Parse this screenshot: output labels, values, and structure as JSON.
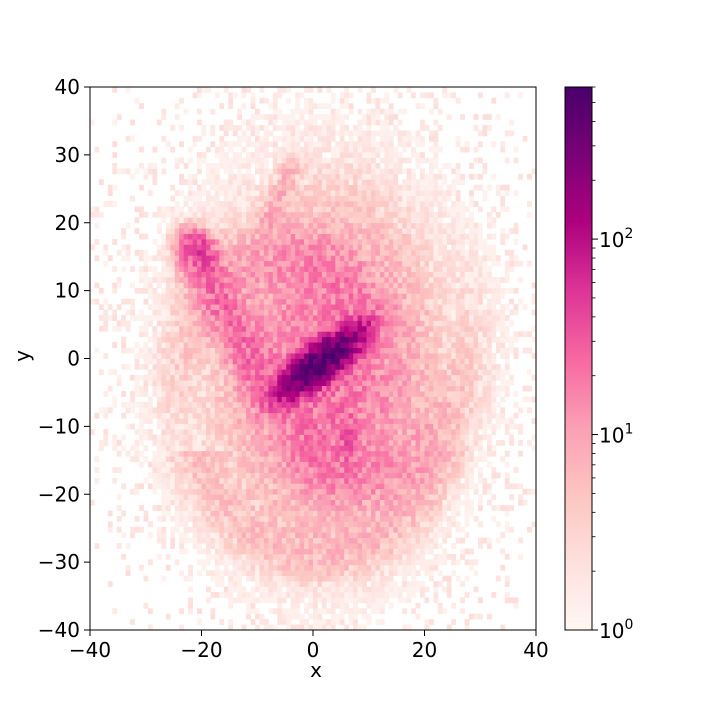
{
  "chart_data": {
    "type": "heatmap",
    "title": "",
    "xlabel": "x",
    "ylabel": "y",
    "xlim": [
      -40,
      40
    ],
    "ylim": [
      -40,
      40
    ],
    "x_ticks": [
      {
        "value": -40,
        "label": "−40"
      },
      {
        "value": -20,
        "label": "−20"
      },
      {
        "value": 0,
        "label": "0"
      },
      {
        "value": 20,
        "label": "20"
      },
      {
        "value": 40,
        "label": "40"
      }
    ],
    "y_ticks": [
      {
        "value": 40,
        "label": "40"
      },
      {
        "value": 30,
        "label": "30"
      },
      {
        "value": 20,
        "label": "20"
      },
      {
        "value": 10,
        "label": "10"
      },
      {
        "value": 0,
        "label": "0"
      },
      {
        "value": -10,
        "label": "−10"
      },
      {
        "value": -20,
        "label": "−20"
      },
      {
        "value": -30,
        "label": "−30"
      },
      {
        "value": -40,
        "label": "−40"
      }
    ],
    "grid": false,
    "colormap": "RdPu",
    "colorbar": {
      "scale": "log",
      "min": 1,
      "max": 600,
      "ticks": [
        {
          "value": 1,
          "base": "10",
          "exp": "0"
        },
        {
          "value": 10,
          "base": "10",
          "exp": "1"
        },
        {
          "value": 100,
          "base": "10",
          "exp": "2"
        }
      ]
    },
    "structure": {
      "description_components": [
        {
          "name": "core-bar",
          "cx": 1.5,
          "cy": -0.5,
          "angle_deg": -58,
          "sx": 1.4,
          "sy": 4.5,
          "peak": 600
        },
        {
          "name": "inner-disk",
          "cx": 3,
          "cy": -2,
          "sx": 10,
          "sy": 13,
          "peak": 20
        },
        {
          "name": "halo",
          "cx": 0,
          "cy": 0,
          "sx": 20,
          "sy": 22,
          "peak": 2.5
        },
        {
          "name": "tidal-arm-nw",
          "from": [
            -21,
            15
          ],
          "to": [
            -10,
            -2
          ],
          "peak": 18
        },
        {
          "name": "hot-spot-nw",
          "cx": -20.5,
          "cy": 16,
          "sx": 2.2,
          "sy": 1.5,
          "peak": 40
        },
        {
          "name": "tail-ne",
          "from": [
            -8,
            20
          ],
          "to": [
            -4,
            28
          ],
          "peak": 5
        },
        {
          "name": "knot-se",
          "cx": 6,
          "cy": -11,
          "sx": 1.2,
          "sy": 2.5,
          "peak": 18
        }
      ]
    },
    "colors": {
      "cmap_stops": [
        "#fff7f3",
        "#fde0dd",
        "#fcc5c0",
        "#fa9fb5",
        "#f768a1",
        "#dd3497",
        "#ae017e",
        "#7a0177",
        "#49006a"
      ],
      "axis": "#000000",
      "background": "#ffffff"
    }
  }
}
